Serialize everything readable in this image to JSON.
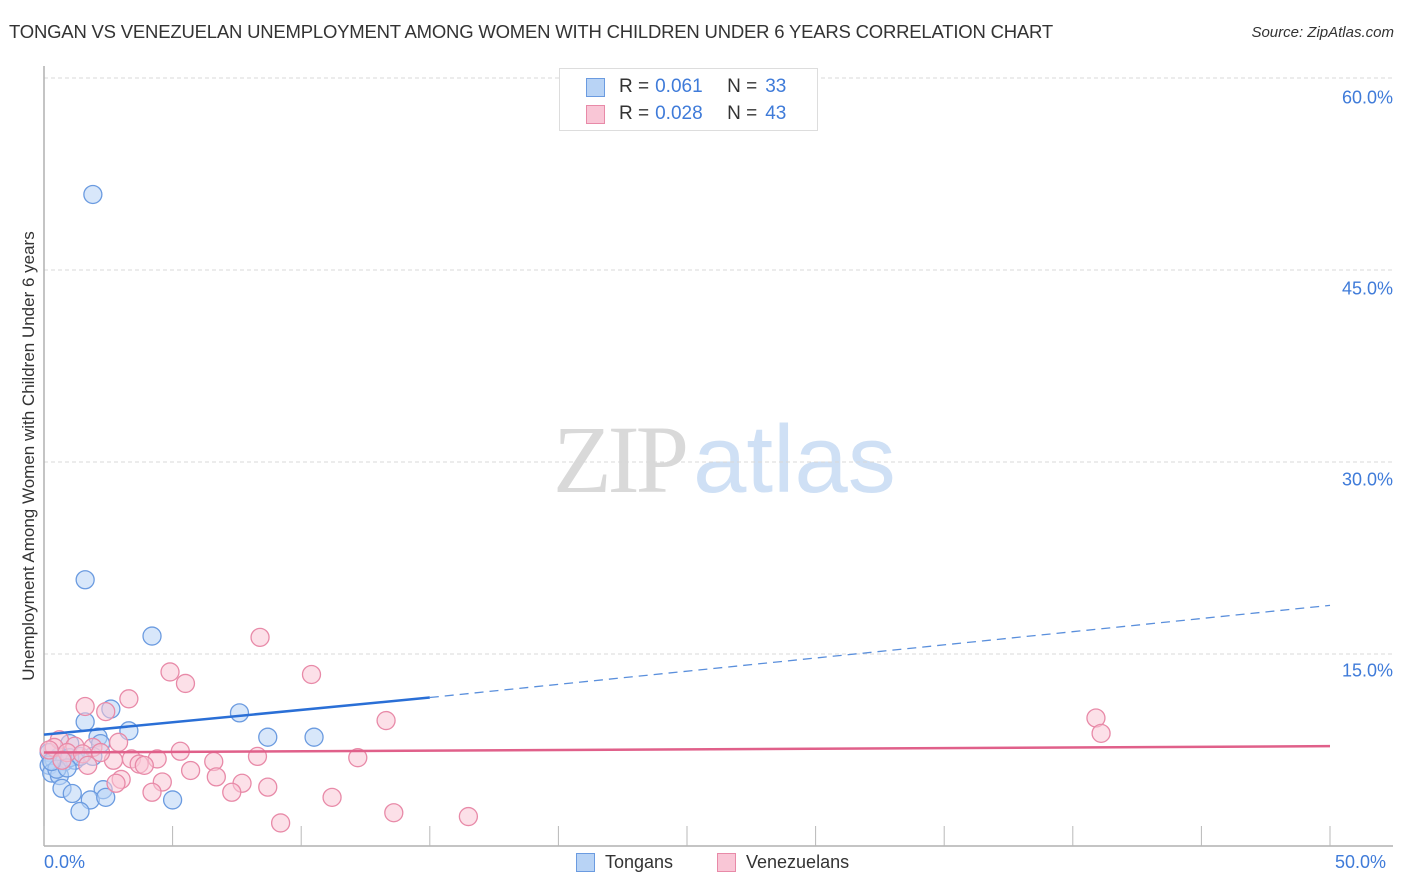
{
  "header": {
    "title": "TONGAN VS VENEZUELAN UNEMPLOYMENT AMONG WOMEN WITH CHILDREN UNDER 6 YEARS CORRELATION CHART",
    "source": "Source: ZipAtlas.com"
  },
  "watermark": {
    "zip": "ZIP",
    "atlas": "atlas"
  },
  "legend_top": {
    "rows": [
      {
        "r_label": "R =",
        "r_value": "0.061",
        "n_label": "N =",
        "n_value": "33",
        "color": "#b8d3f5",
        "border": "#6b9be0"
      },
      {
        "r_label": "R =",
        "r_value": "0.028",
        "n_label": "N =",
        "n_value": "43",
        "color": "#f9c6d6",
        "border": "#e88aa8"
      }
    ]
  },
  "legend_bottom": {
    "items": [
      {
        "label": "Tongans",
        "color": "#b8d3f5",
        "border": "#6b9be0"
      },
      {
        "label": "Venezuelans",
        "color": "#f9c6d6",
        "border": "#e88aa8"
      }
    ]
  },
  "axes": {
    "ylabel": "Unemployment Among Women with Children Under 6 years",
    "y_ticks": [
      "60.0%",
      "45.0%",
      "30.0%",
      "15.0%"
    ],
    "x_ticks": [
      "0.0%",
      "50.0%"
    ]
  },
  "chart_data": {
    "type": "scatter",
    "title": "TONGAN VS VENEZUELAN UNEMPLOYMENT AMONG WOMEN WITH CHILDREN UNDER 6 YEARS CORRELATION CHART",
    "xlabel": "",
    "ylabel": "Unemployment Among Women with Children Under 6 years",
    "xlim": [
      0,
      50
    ],
    "ylim": [
      0,
      60
    ],
    "x_ticks": [
      0,
      50
    ],
    "y_ticks": [
      15,
      30,
      45,
      60
    ],
    "grid": true,
    "legend_position": "bottom",
    "series": [
      {
        "name": "Tongans",
        "color": "#6b9be0",
        "fill": "#b8d3f5",
        "R": 0.061,
        "N": 33,
        "points": [
          [
            1.9,
            50.9
          ],
          [
            1.6,
            20.8
          ],
          [
            4.2,
            16.4
          ],
          [
            2.6,
            10.7
          ],
          [
            1.6,
            9.7
          ],
          [
            7.6,
            10.4
          ],
          [
            3.3,
            9.0
          ],
          [
            8.7,
            8.5
          ],
          [
            10.5,
            8.5
          ],
          [
            2.1,
            8.5
          ],
          [
            2.2,
            8.0
          ],
          [
            1.0,
            8.0
          ],
          [
            1.9,
            7.0
          ],
          [
            0.6,
            7.0
          ],
          [
            0.2,
            7.3
          ],
          [
            0.4,
            6.7
          ],
          [
            0.8,
            6.6
          ],
          [
            1.2,
            6.7
          ],
          [
            0.2,
            6.3
          ],
          [
            1.0,
            6.9
          ],
          [
            1.4,
            7.0
          ],
          [
            0.3,
            5.7
          ],
          [
            0.6,
            5.5
          ],
          [
            0.7,
            4.5
          ],
          [
            1.1,
            4.1
          ],
          [
            2.3,
            4.4
          ],
          [
            1.8,
            3.6
          ],
          [
            2.4,
            3.8
          ],
          [
            5.0,
            3.6
          ],
          [
            1.4,
            2.7
          ],
          [
            0.5,
            6.0
          ],
          [
            0.9,
            6.1
          ],
          [
            0.3,
            6.6
          ]
        ],
        "trendline": {
          "x": [
            0,
            15,
            50
          ],
          "y": [
            8.7,
            11.6,
            18.8
          ],
          "solid_until_x": 15,
          "style_after": "dashed"
        }
      },
      {
        "name": "Venezuelans",
        "color": "#e88aa8",
        "fill": "#f9c6d6",
        "R": 0.028,
        "N": 43,
        "points": [
          [
            8.4,
            16.3
          ],
          [
            10.4,
            13.4
          ],
          [
            4.9,
            13.6
          ],
          [
            5.5,
            12.7
          ],
          [
            3.3,
            11.5
          ],
          [
            1.6,
            10.9
          ],
          [
            2.4,
            10.5
          ],
          [
            13.3,
            9.8
          ],
          [
            40.9,
            10.0
          ],
          [
            41.1,
            8.8
          ],
          [
            5.3,
            7.4
          ],
          [
            8.3,
            7.0
          ],
          [
            12.2,
            6.9
          ],
          [
            6.6,
            6.6
          ],
          [
            3.4,
            6.8
          ],
          [
            4.4,
            6.8
          ],
          [
            3.7,
            6.4
          ],
          [
            3.9,
            6.3
          ],
          [
            2.7,
            6.7
          ],
          [
            5.7,
            5.9
          ],
          [
            6.7,
            5.4
          ],
          [
            3.0,
            5.2
          ],
          [
            2.8,
            4.9
          ],
          [
            4.6,
            5.0
          ],
          [
            7.7,
            4.9
          ],
          [
            8.7,
            4.6
          ],
          [
            4.2,
            4.2
          ],
          [
            7.3,
            4.2
          ],
          [
            11.2,
            3.8
          ],
          [
            13.6,
            2.6
          ],
          [
            9.2,
            1.8
          ],
          [
            16.5,
            2.3
          ],
          [
            0.6,
            8.3
          ],
          [
            1.2,
            7.8
          ],
          [
            1.9,
            7.7
          ],
          [
            2.2,
            7.3
          ],
          [
            0.4,
            7.7
          ],
          [
            0.9,
            7.3
          ],
          [
            0.2,
            7.5
          ],
          [
            1.5,
            7.2
          ],
          [
            0.7,
            6.7
          ],
          [
            2.9,
            8.1
          ],
          [
            1.7,
            6.3
          ]
        ],
        "trendline": {
          "x": [
            0,
            50
          ],
          "y": [
            7.3,
            7.8
          ],
          "style": "solid"
        }
      }
    ]
  }
}
